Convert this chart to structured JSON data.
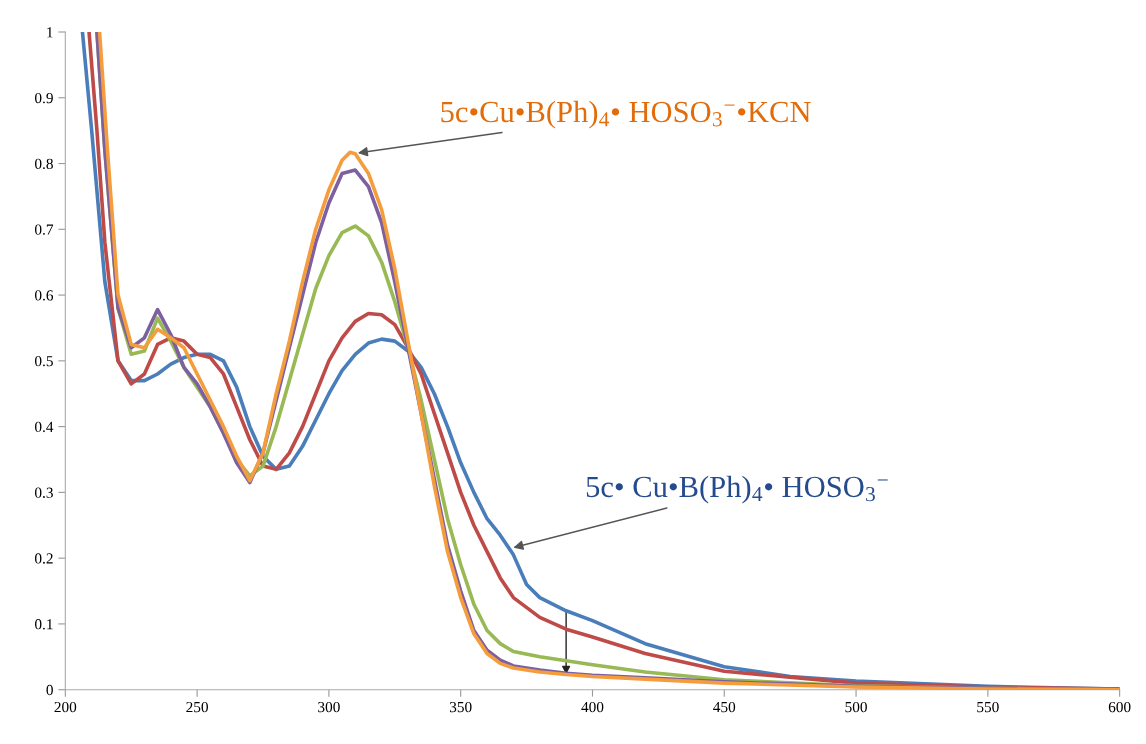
{
  "chart_data": {
    "type": "line",
    "xlim": [
      200,
      600
    ],
    "ylim": [
      0,
      1
    ],
    "xticks": [
      200,
      250,
      300,
      350,
      400,
      450,
      500,
      550,
      600
    ],
    "yticks": [
      0,
      0.1,
      0.2,
      0.3,
      0.4,
      0.5,
      0.6,
      0.7,
      0.8,
      0.9,
      1
    ],
    "grid": false,
    "legend": false,
    "marker": "none",
    "line_style": "solid",
    "series": [
      {
        "color": "#4a7ebb",
        "x": [
          206.5,
          210,
          215,
          220,
          225,
          230,
          235,
          240,
          245,
          250,
          255,
          260,
          265,
          270,
          275,
          280,
          285,
          290,
          295,
          300,
          305,
          310,
          315,
          320,
          325,
          330,
          335,
          340,
          345,
          350,
          355,
          360,
          365,
          370,
          375,
          380,
          390,
          400,
          420,
          450,
          475,
          500,
          550,
          600
        ],
        "values": [
          1.0,
          0.85,
          0.62,
          0.5,
          0.47,
          0.47,
          0.48,
          0.495,
          0.505,
          0.51,
          0.51,
          0.5,
          0.46,
          0.4,
          0.355,
          0.335,
          0.34,
          0.37,
          0.41,
          0.45,
          0.485,
          0.51,
          0.527,
          0.533,
          0.53,
          0.515,
          0.49,
          0.45,
          0.4,
          0.345,
          0.3,
          0.26,
          0.235,
          0.205,
          0.16,
          0.14,
          0.12,
          0.105,
          0.07,
          0.035,
          0.02,
          0.013,
          0.005,
          0.001
        ]
      },
      {
        "color": "#be4b48",
        "x": [
          209,
          212,
          215,
          220,
          225,
          230,
          235,
          240,
          245,
          250,
          255,
          260,
          265,
          270,
          275,
          280,
          285,
          290,
          295,
          300,
          305,
          310,
          315,
          320,
          325,
          330,
          335,
          340,
          345,
          350,
          355,
          360,
          365,
          370,
          380,
          390,
          400,
          420,
          450,
          500,
          550,
          600
        ],
        "values": [
          1.0,
          0.85,
          0.68,
          0.5,
          0.465,
          0.48,
          0.525,
          0.535,
          0.53,
          0.51,
          0.505,
          0.48,
          0.43,
          0.38,
          0.34,
          0.335,
          0.36,
          0.4,
          0.45,
          0.5,
          0.535,
          0.56,
          0.572,
          0.57,
          0.555,
          0.52,
          0.48,
          0.42,
          0.36,
          0.3,
          0.25,
          0.21,
          0.17,
          0.14,
          0.11,
          0.092,
          0.08,
          0.055,
          0.028,
          0.01,
          0.004,
          0.001
        ]
      },
      {
        "color": "#98b954",
        "x": [
          212,
          215,
          220,
          225,
          230,
          235,
          240,
          245,
          250,
          255,
          260,
          265,
          270,
          275,
          280,
          285,
          290,
          295,
          300,
          305,
          310,
          315,
          320,
          325,
          330,
          335,
          340,
          345,
          350,
          355,
          360,
          365,
          370,
          380,
          390,
          400,
          420,
          450,
          500,
          550,
          600
        ],
        "values": [
          1.0,
          0.82,
          0.58,
          0.51,
          0.515,
          0.565,
          0.53,
          0.49,
          0.46,
          0.43,
          0.39,
          0.35,
          0.325,
          0.34,
          0.4,
          0.47,
          0.54,
          0.61,
          0.66,
          0.695,
          0.705,
          0.69,
          0.65,
          0.59,
          0.52,
          0.44,
          0.35,
          0.26,
          0.19,
          0.13,
          0.09,
          0.07,
          0.058,
          0.05,
          0.044,
          0.038,
          0.027,
          0.015,
          0.006,
          0.002,
          0.0
        ]
      },
      {
        "color": "#7d60a0",
        "x": [
          212,
          215,
          220,
          225,
          230,
          235,
          240,
          245,
          250,
          255,
          260,
          265,
          270,
          275,
          280,
          285,
          290,
          295,
          300,
          305,
          310,
          315,
          320,
          325,
          330,
          335,
          340,
          345,
          350,
          355,
          360,
          365,
          370,
          380,
          390,
          400,
          420,
          450,
          500,
          550,
          600
        ],
        "values": [
          1.0,
          0.82,
          0.58,
          0.52,
          0.535,
          0.578,
          0.54,
          0.49,
          0.465,
          0.43,
          0.39,
          0.345,
          0.315,
          0.36,
          0.44,
          0.52,
          0.6,
          0.68,
          0.74,
          0.785,
          0.79,
          0.765,
          0.71,
          0.62,
          0.52,
          0.42,
          0.32,
          0.22,
          0.15,
          0.09,
          0.06,
          0.045,
          0.036,
          0.03,
          0.025,
          0.022,
          0.018,
          0.012,
          0.005,
          0.002,
          0.0
        ]
      },
      {
        "color": "#f59d3d",
        "x": [
          213,
          216,
          220,
          225,
          230,
          235,
          240,
          245,
          250,
          255,
          260,
          265,
          270,
          275,
          280,
          285,
          290,
          295,
          300,
          305,
          308,
          310,
          315,
          320,
          325,
          330,
          335,
          340,
          345,
          350,
          355,
          360,
          365,
          370,
          380,
          390,
          400,
          420,
          450,
          500,
          550,
          600
        ],
        "values": [
          1.0,
          0.82,
          0.6,
          0.525,
          0.52,
          0.548,
          0.535,
          0.52,
          0.48,
          0.44,
          0.4,
          0.355,
          0.318,
          0.36,
          0.45,
          0.53,
          0.62,
          0.7,
          0.76,
          0.805,
          0.817,
          0.815,
          0.785,
          0.73,
          0.64,
          0.53,
          0.42,
          0.31,
          0.21,
          0.14,
          0.085,
          0.055,
          0.04,
          0.033,
          0.027,
          0.023,
          0.02,
          0.016,
          0.01,
          0.004,
          0.001,
          0.0
        ]
      }
    ],
    "annotations": [
      {
        "text": "5c•Cu•B(Ph)$_{4}$• HOSO$_{3}$$^{−}$•KCN",
        "x": 311,
        "y": 0.816
      },
      {
        "text": "5c• Cu•B(Ph)$_{4}$• HOSO$_{3}$$^{−}$",
        "x": 370,
        "y": 0.216
      }
    ]
  }
}
